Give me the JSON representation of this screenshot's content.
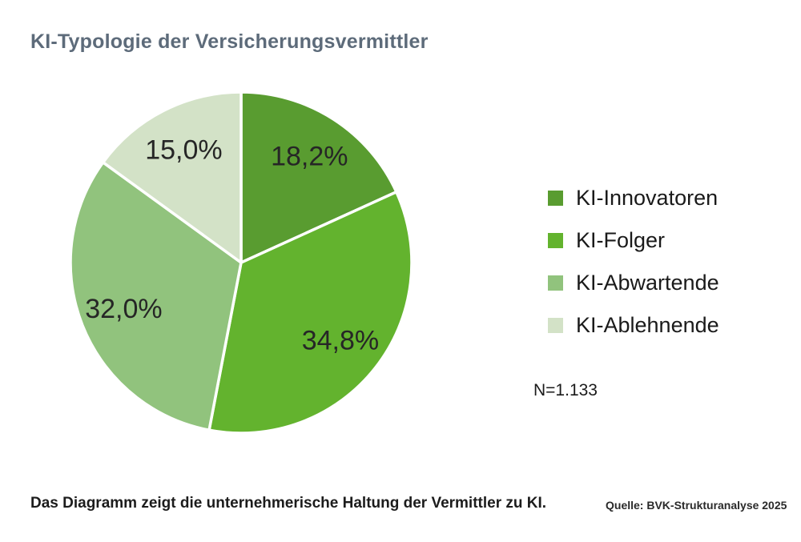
{
  "header": {
    "title": "KI-Typologie der Versicherungsvermittler",
    "title_color": "#5d6b7a"
  },
  "chart_data": {
    "type": "pie",
    "title": "KI-Typologie der Versicherungsvermittler",
    "direction": "clockwise",
    "start_angle_deg": 0,
    "legend_position": "right",
    "label_position": "inside",
    "divider_color": "#ffffff",
    "slices": [
      {
        "label": "KI-Innovatoren",
        "value": 18.2,
        "display": "18,2%",
        "color": "#599c30"
      },
      {
        "label": "KI-Folger",
        "value": 34.8,
        "display": "34,8%",
        "color": "#63b32e"
      },
      {
        "label": "KI-Abwartende",
        "value": 32.0,
        "display": "32,0%",
        "color": "#91c37d"
      },
      {
        "label": "KI-Ablehnende",
        "value": 15.0,
        "display": "15,0%",
        "color": "#d3e2c7"
      }
    ],
    "sample_size_note": "N=1.133"
  },
  "footer": {
    "caption": "Das Diagramm zeigt die unternehmerische Haltung der Vermittler zu KI.",
    "source": "Quelle: BVK-Strukturanalyse 2025"
  }
}
